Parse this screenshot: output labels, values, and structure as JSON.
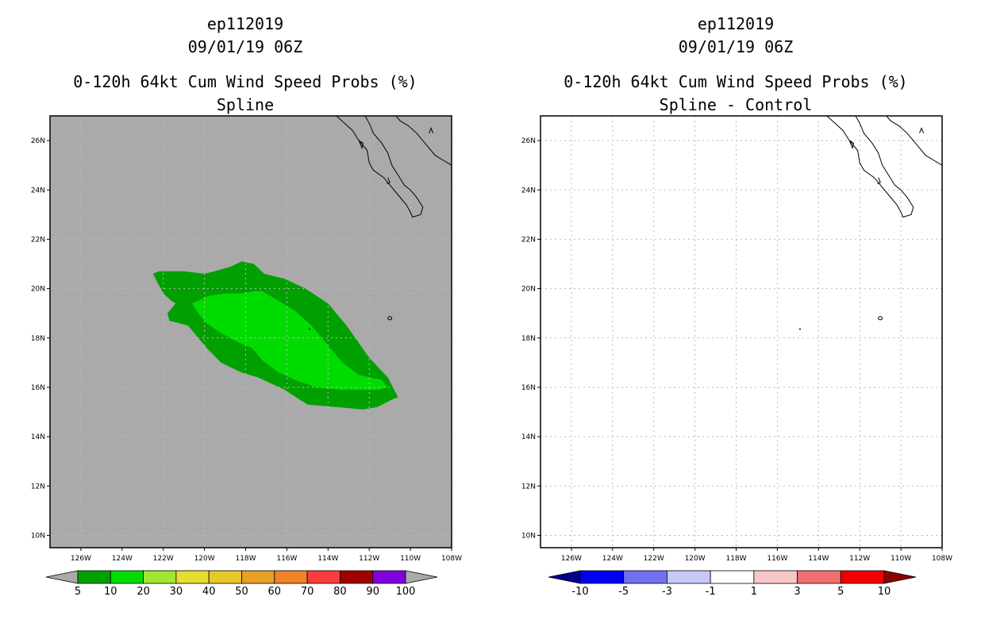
{
  "colors": {
    "land_background": "#aaaaaa",
    "coast": "#000000",
    "grid": "#bbbbbb",
    "prob_5_10": "#00a000",
    "prob_10_20": "#00dc00",
    "prob_20_30": "#a0e632",
    "prob_30_40": "#e6dc32",
    "prob_40_50": "#e6c828",
    "prob_50_60": "#e6a028",
    "prob_60_70": "#f08228",
    "prob_70_80": "#fa3c3c",
    "prob_80_90": "#a00000",
    "prob_90_100": "#8200dc",
    "diff_neg10": "#00008c",
    "diff_neg5": "#0000f0",
    "diff_neg3": "#7070f0",
    "diff_neg1": "#c8c8f8",
    "diff_pos1": "#ffffff",
    "diff_pos3": "#f8c8c8",
    "diff_pos5": "#f07070",
    "diff_pos10": "#f00000",
    "diff_over": "#8c0000"
  },
  "chart_data": [
    {
      "type": "heatmap",
      "storm_id": "ep112019",
      "valid_time": "09/01/19 06Z",
      "title": "0-120h 64kt Cum Wind Speed Probs (%)",
      "subtitle": "Spline",
      "xlim": [
        -127.5,
        -108
      ],
      "ylim": [
        9.5,
        27
      ],
      "x_ticks": [
        -126,
        -124,
        -122,
        -120,
        -118,
        -116,
        -114,
        -112,
        -110,
        -108
      ],
      "x_tick_labels": [
        "126W",
        "124W",
        "122W",
        "120W",
        "118W",
        "116W",
        "114W",
        "112W",
        "110W",
        "108W"
      ],
      "y_ticks": [
        10,
        12,
        14,
        16,
        18,
        20,
        22,
        24,
        26
      ],
      "y_tick_labels": [
        "10N",
        "12N",
        "14N",
        "16N",
        "18N",
        "20N",
        "22N",
        "24N",
        "26N"
      ],
      "grid": true,
      "colorbar": {
        "levels": [
          5,
          10,
          20,
          30,
          40,
          50,
          60,
          70,
          80,
          90,
          100
        ],
        "labels": [
          "5",
          "10",
          "20",
          "30",
          "40",
          "50",
          "60",
          "70",
          "80",
          "90",
          "100"
        ],
        "colors": [
          "#00a000",
          "#00dc00",
          "#a0e632",
          "#e6dc32",
          "#e6c828",
          "#e6a028",
          "#f08228",
          "#fa3c3c",
          "#a00000",
          "#8200dc"
        ],
        "under_color": "#aaaaaa",
        "over_color": "#aaaaaa"
      },
      "contours": [
        {
          "level": "5-10",
          "color": "#00a000",
          "points": [
            [
              -122.5,
              20.6
            ],
            [
              -122.2,
              20.7
            ],
            [
              -121.0,
              20.7
            ],
            [
              -120.0,
              20.6
            ],
            [
              -119.5,
              20.7
            ],
            [
              -118.7,
              20.9
            ],
            [
              -118.2,
              21.1
            ],
            [
              -117.6,
              21.0
            ],
            [
              -117.1,
              20.6
            ],
            [
              -116.1,
              20.4
            ],
            [
              -115.1,
              20.0
            ],
            [
              -114.0,
              19.4
            ],
            [
              -113.1,
              18.5
            ],
            [
              -112.0,
              17.2
            ],
            [
              -111.1,
              16.4
            ],
            [
              -110.6,
              15.6
            ],
            [
              -110.9,
              15.5
            ],
            [
              -111.6,
              15.2
            ],
            [
              -112.3,
              15.1
            ],
            [
              -113.6,
              15.2
            ],
            [
              -115.0,
              15.3
            ],
            [
              -116.1,
              15.9
            ],
            [
              -117.4,
              16.4
            ],
            [
              -118.2,
              16.6
            ],
            [
              -119.2,
              17.0
            ],
            [
              -119.9,
              17.6
            ],
            [
              -120.4,
              18.1
            ],
            [
              -120.8,
              18.5
            ],
            [
              -121.7,
              18.7
            ],
            [
              -121.8,
              19.0
            ],
            [
              -121.4,
              19.4
            ],
            [
              -121.6,
              19.5
            ],
            [
              -122.0,
              19.8
            ]
          ]
        },
        {
          "level": "10-20",
          "color": "#00dc00",
          "points": [
            [
              -120.6,
              19.4
            ],
            [
              -119.8,
              19.7
            ],
            [
              -119.0,
              19.8
            ],
            [
              -118.2,
              19.8
            ],
            [
              -117.6,
              19.9
            ],
            [
              -117.2,
              19.9
            ],
            [
              -116.6,
              19.6
            ],
            [
              -115.6,
              19.1
            ],
            [
              -114.8,
              18.5
            ],
            [
              -114.1,
              17.8
            ],
            [
              -113.3,
              17.0
            ],
            [
              -112.5,
              16.5
            ],
            [
              -111.4,
              16.3
            ],
            [
              -111.1,
              16.0
            ],
            [
              -111.6,
              15.9
            ],
            [
              -112.4,
              15.9
            ],
            [
              -113.3,
              15.9
            ],
            [
              -114.6,
              16.0
            ],
            [
              -115.6,
              16.3
            ],
            [
              -116.4,
              16.6
            ],
            [
              -117.2,
              17.1
            ],
            [
              -117.7,
              17.6
            ],
            [
              -118.3,
              17.8
            ],
            [
              -119.2,
              18.2
            ],
            [
              -119.9,
              18.6
            ],
            [
              -120.3,
              19.0
            ]
          ]
        }
      ],
      "coastline_on": true,
      "markers": [
        {
          "lon": -114.9,
          "lat": 18.35
        }
      ]
    },
    {
      "type": "heatmap",
      "storm_id": "ep112019",
      "valid_time": "09/01/19 06Z",
      "title": "0-120h 64kt Cum Wind Speed Probs (%)",
      "subtitle": "Spline - Control",
      "xlim": [
        -127.5,
        -108
      ],
      "ylim": [
        9.5,
        27
      ],
      "x_ticks": [
        -126,
        -124,
        -122,
        -120,
        -118,
        -116,
        -114,
        -112,
        -110,
        -108
      ],
      "x_tick_labels": [
        "126W",
        "124W",
        "122W",
        "120W",
        "118W",
        "116W",
        "114W",
        "112W",
        "110W",
        "108W"
      ],
      "y_ticks": [
        10,
        12,
        14,
        16,
        18,
        20,
        22,
        24,
        26
      ],
      "y_tick_labels": [
        "10N",
        "12N",
        "14N",
        "16N",
        "18N",
        "20N",
        "22N",
        "24N",
        "26N"
      ],
      "grid": true,
      "colorbar": {
        "levels": [
          -10,
          -5,
          -3,
          -1,
          1,
          3,
          5,
          10
        ],
        "labels": [
          "-10",
          "-5",
          "-3",
          "-1",
          "1",
          "3",
          "5",
          "10"
        ],
        "colors": [
          "#0000f0",
          "#7070f0",
          "#c8c8f8",
          "#ffffff",
          "#f8c8c8",
          "#f07070",
          "#f00000"
        ],
        "under_color": "#00008c",
        "over_color": "#8c0000"
      },
      "contours": [],
      "coastline_on": true,
      "markers": [
        {
          "lon": -114.9,
          "lat": 18.35
        }
      ]
    }
  ]
}
